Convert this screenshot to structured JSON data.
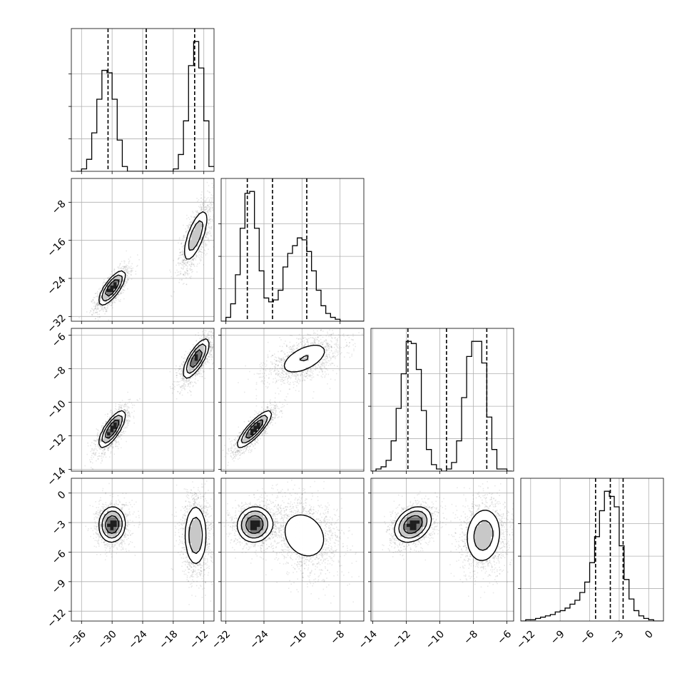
{
  "chart_data": {
    "type": "corner",
    "parameters": [
      {
        "name": "p1",
        "range": [
          -38,
          -10
        ],
        "ticks": [
          -36,
          -30,
          -24,
          -18,
          -12
        ],
        "tick_labels": [
          "−36",
          "−30",
          "−24",
          "−18",
          "−12"
        ]
      },
      {
        "name": "p2",
        "range": [
          -33,
          -3
        ],
        "ticks": [
          -32,
          -24,
          -16,
          -8
        ],
        "tick_labels": [
          "−32",
          "−24",
          "−16",
          "−8"
        ]
      },
      {
        "name": "p3",
        "range": [
          -14.1,
          -5.6
        ],
        "ticks": [
          -14,
          -12,
          -10,
          -8,
          -6
        ],
        "tick_labels": [
          "−14",
          "−12",
          "−10",
          "−8",
          "−6"
        ]
      },
      {
        "name": "p4",
        "range": [
          -13,
          1.5
        ],
        "ticks": [
          -12,
          -9,
          -6,
          -3,
          0
        ],
        "tick_labels": [
          "−12",
          "−9",
          "−6",
          "−3",
          "0"
        ]
      }
    ],
    "quantiles": [
      [
        -30.8,
        -23.3,
        -13.8
      ],
      [
        -27.5,
        -22.2,
        -15.0
      ],
      [
        -11.9,
        -9.6,
        -7.2
      ],
      [
        -5.4,
        -3.9,
        -2.6
      ]
    ],
    "histograms": [
      {
        "edges": [
          -37,
          -36,
          -35,
          -34,
          -33,
          -32,
          -31,
          -30,
          -29,
          -28,
          -27,
          -26,
          -25,
          -24,
          -23,
          -22,
          -21,
          -20,
          -19,
          -18,
          -17,
          -16,
          -15,
          -14,
          -13,
          -12,
          -11,
          -10
        ],
        "counts": [
          0,
          1,
          5,
          16,
          30,
          42,
          41,
          30,
          13,
          2,
          0,
          0,
          0,
          0,
          0,
          0,
          0,
          0,
          0,
          1,
          7,
          21,
          44,
          54,
          43,
          21,
          2
        ]
      },
      {
        "edges": [
          -33,
          -32,
          -31,
          -30,
          -29,
          -28,
          -27,
          -26,
          -25,
          -24,
          -23,
          -22,
          -21,
          -20,
          -19,
          -18,
          -17,
          -16,
          -15,
          -14,
          -13,
          -12,
          -11,
          -10,
          -9,
          -8,
          -7,
          -6,
          -5,
          -4,
          -3
        ],
        "counts": [
          0,
          2,
          9,
          24,
          48,
          66,
          67,
          48,
          26,
          12,
          10,
          11,
          16,
          28,
          35,
          39,
          43,
          42,
          36,
          26,
          16,
          8,
          4,
          2,
          1,
          0,
          0,
          0,
          0,
          0
        ]
      },
      {
        "edges": [
          -14.1,
          -13.8,
          -13.5,
          -13.2,
          -12.9,
          -12.6,
          -12.3,
          -12.0,
          -11.7,
          -11.4,
          -11.1,
          -10.8,
          -10.5,
          -10.2,
          -9.9,
          -9.6,
          -9.3,
          -9.0,
          -8.7,
          -8.4,
          -8.1,
          -7.8,
          -7.5,
          -7.2,
          -6.9,
          -6.6,
          -6.3,
          -6.0,
          -5.7
        ],
        "counts": [
          0,
          1,
          2,
          5,
          14,
          29,
          45,
          60,
          59,
          47,
          28,
          10,
          3,
          1,
          0,
          1,
          4,
          14,
          34,
          53,
          60,
          60,
          50,
          25,
          10,
          1,
          1,
          0
        ]
      },
      {
        "edges": [
          -13.0,
          -12.5,
          -12.0,
          -11.5,
          -11.0,
          -10.5,
          -10.0,
          -9.5,
          -9.0,
          -8.5,
          -8.0,
          -7.5,
          -7.0,
          -6.5,
          -6.0,
          -5.5,
          -5.0,
          -4.5,
          -4.0,
          -3.5,
          -3.0,
          -2.5,
          -2.0,
          -1.5,
          -1.0,
          -0.5,
          0.0,
          0.5,
          1.0,
          1.5
        ],
        "counts": [
          0,
          1,
          1,
          2,
          3,
          4,
          5,
          7,
          8,
          10,
          13,
          16,
          22,
          30,
          45,
          65,
          85,
          100,
          96,
          88,
          58,
          32,
          17,
          8,
          4,
          2,
          1,
          0,
          0
        ]
      }
    ],
    "pair_components": [
      {
        "row": 1,
        "col": 0,
        "modes": [
          {
            "mx": -30.0,
            "my": -26.0,
            "sx": 1.3,
            "sy": 1.8,
            "rho": 0.75,
            "w": 0.5
          },
          {
            "mx": -13.6,
            "my": -15.0,
            "sx": 1.3,
            "sy": 3.0,
            "rho": 0.7,
            "w": 0.5
          }
        ]
      },
      {
        "row": 2,
        "col": 0,
        "modes": [
          {
            "mx": -30.0,
            "my": -11.6,
            "sx": 1.3,
            "sy": 0.55,
            "rho": 0.75,
            "w": 0.5
          },
          {
            "mx": -13.5,
            "my": -7.4,
            "sx": 1.3,
            "sy": 0.6,
            "rho": 0.75,
            "w": 0.5
          }
        ]
      },
      {
        "row": 3,
        "col": 0,
        "modes": [
          {
            "mx": -30.0,
            "my": -3.2,
            "sx": 1.3,
            "sy": 0.9,
            "rho": 0.05,
            "w": 0.5
          },
          {
            "mx": -13.6,
            "my": -4.3,
            "sx": 1.2,
            "sy": 1.7,
            "rho": 0.0,
            "w": 0.5
          }
        ]
      },
      {
        "row": 2,
        "col": 1,
        "modes": [
          {
            "mx": -26.0,
            "my": -11.6,
            "sx": 1.8,
            "sy": 0.55,
            "rho": 0.85,
            "w": 0.5
          },
          {
            "mx": -15.5,
            "my": -7.4,
            "sx": 3.2,
            "sy": 0.6,
            "rho": 0.55,
            "w": 0.5
          }
        ]
      },
      {
        "row": 3,
        "col": 1,
        "modes": [
          {
            "mx": -26.0,
            "my": -3.2,
            "sx": 1.8,
            "sy": 0.9,
            "rho": 0.05,
            "w": 0.5
          },
          {
            "mx": -15.5,
            "my": -4.3,
            "sx": 3.3,
            "sy": 1.7,
            "rho": -0.2,
            "w": 0.5
          }
        ]
      },
      {
        "row": 3,
        "col": 2,
        "modes": [
          {
            "mx": -11.6,
            "my": -3.2,
            "sx": 0.55,
            "sy": 0.9,
            "rho": 0.3,
            "w": 0.5
          },
          {
            "mx": -7.4,
            "my": -4.3,
            "sx": 0.6,
            "sy": 1.6,
            "rho": 0.1,
            "w": 0.5
          }
        ]
      }
    ],
    "grid": true,
    "title": "",
    "xlabel": "",
    "ylabel": ""
  }
}
